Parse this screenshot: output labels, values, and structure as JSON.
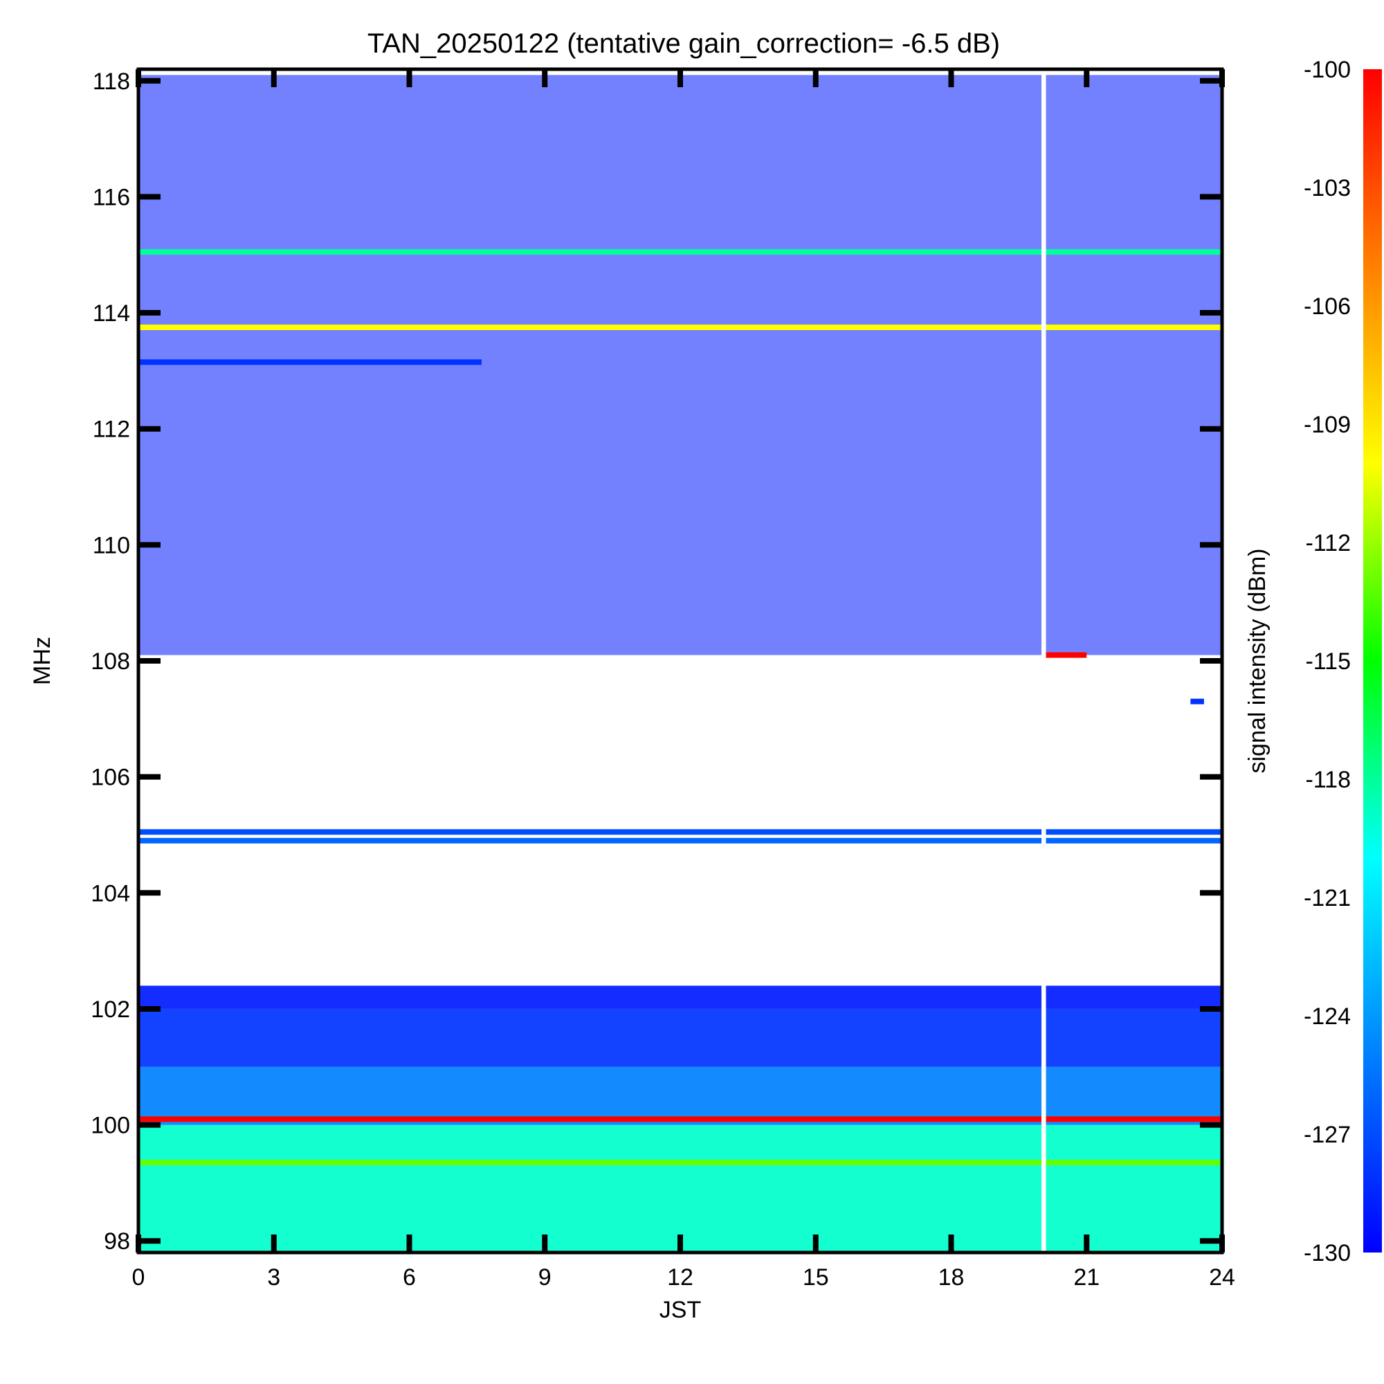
{
  "chart_data": {
    "type": "heatmap",
    "title": "TAN_20250122 (tentative gain_correction= -6.5 dB)",
    "xlabel": "JST",
    "ylabel": "MHz",
    "colorbar_label": "signal intensity (dBm)",
    "xlim": [
      0,
      24
    ],
    "ylim": [
      97.8,
      118.2
    ],
    "x_ticks": [
      "0",
      "3",
      "6",
      "9",
      "12",
      "15",
      "18",
      "21",
      "24"
    ],
    "y_ticks": [
      "98",
      "100",
      "102",
      "104",
      "106",
      "108",
      "110",
      "112",
      "114",
      "116",
      "118"
    ],
    "color_range": [
      -130,
      -100
    ],
    "colorbar_ticks": [
      "-100",
      "-103",
      "-106",
      "-109",
      "-112",
      "-115",
      "-118",
      "-121",
      "-124",
      "-127",
      "-130"
    ],
    "colormap": [
      "#0000ff",
      "#0080ff",
      "#00ffff",
      "#00ff00",
      "#ffff00",
      "#ff8000",
      "#ff0000"
    ],
    "background_color": "#ffffff",
    "data_gap": {
      "x": [
        20.0,
        20.1
      ]
    },
    "bands": [
      {
        "name": "98-100 MHz",
        "y": [
          97.8,
          100.0
        ],
        "level": -119
      },
      {
        "name": "100-101 MHz",
        "y": [
          100.0,
          101.0
        ],
        "level": -125
      },
      {
        "name": "101-102 MHz",
        "y": [
          101.0,
          102.0
        ],
        "level": -128
      },
      {
        "name": "102-102.4 MHz",
        "y": [
          102.0,
          102.4
        ],
        "level": -129
      },
      {
        "name": "108.1-118 MHz",
        "y": [
          108.1,
          118.1
        ],
        "level": -129
      }
    ],
    "lines": [
      {
        "y": 100.1,
        "x": [
          0,
          24
        ],
        "level": -100
      },
      {
        "y": 99.35,
        "x": [
          0,
          24
        ],
        "level": -113
      },
      {
        "y": 105.05,
        "x": [
          0,
          24
        ],
        "level": -127
      },
      {
        "y": 104.9,
        "x": [
          0,
          24
        ],
        "level": -126
      },
      {
        "y": 113.75,
        "x": [
          0,
          24
        ],
        "level": -110
      },
      {
        "y": 115.05,
        "x": [
          0,
          24
        ],
        "level": -118
      },
      {
        "y": 113.15,
        "x": [
          0,
          7.6
        ],
        "level": -128
      },
      {
        "y": 108.1,
        "x": [
          20.0,
          21.0
        ],
        "level": -100
      },
      {
        "y": 107.3,
        "x": [
          23.3,
          23.6
        ],
        "level": -128
      }
    ]
  }
}
